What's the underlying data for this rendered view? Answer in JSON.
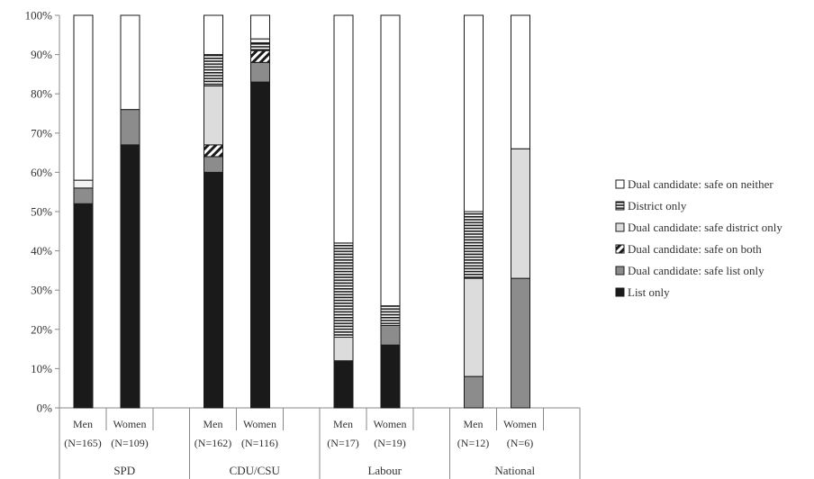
{
  "chart_data": {
    "type": "bar",
    "stacked": true,
    "percent_scale": true,
    "ylim": [
      0,
      100
    ],
    "yticks": [
      "0%",
      "10%",
      "20%",
      "30%",
      "40%",
      "50%",
      "60%",
      "70%",
      "80%",
      "90%",
      "100%"
    ],
    "legend_position": "right",
    "groups": [
      {
        "name": "SPD",
        "bars": [
          {
            "label": "Men",
            "n": "(N=165)",
            "values": [
              52,
              4,
              0,
              0,
              0,
              2,
              42
            ]
          },
          {
            "label": "Women",
            "n": "(N=109)",
            "values": [
              67,
              9,
              0,
              0,
              0,
              0,
              24
            ]
          }
        ]
      },
      {
        "name": "CDU/CSU",
        "bars": [
          {
            "label": "Men",
            "n": "(N=162)",
            "values": [
              60,
              4,
              3,
              15,
              8,
              0,
              10
            ]
          },
          {
            "label": "Women",
            "n": "(N=116)",
            "values": [
              83,
              5,
              3,
              0,
              2,
              1,
              6
            ]
          }
        ]
      },
      {
        "name": "Labour",
        "bars": [
          {
            "label": "Men",
            "n": "(N=17)",
            "values": [
              12,
              0,
              0,
              6,
              24,
              0,
              58
            ]
          },
          {
            "label": "Women",
            "n": "(N=19)",
            "values": [
              16,
              5,
              0,
              0,
              5,
              0,
              74
            ]
          }
        ]
      },
      {
        "name": "National",
        "bars": [
          {
            "label": "Men",
            "n": "(N=12)",
            "values": [
              0,
              8,
              0,
              25,
              17,
              0,
              50
            ]
          },
          {
            "label": "Women",
            "n": "(N=6)",
            "values": [
              0,
              33,
              0,
              33,
              0,
              0,
              34
            ]
          }
        ]
      }
    ],
    "series": [
      {
        "name": "List only",
        "color": "#1a1a1a",
        "pattern": "solid"
      },
      {
        "name": "Dual candidate: safe list only",
        "color": "#8c8c8c",
        "pattern": "solid"
      },
      {
        "name": "Dual candidate: safe on both",
        "color": "#ffffff",
        "pattern": "diagonal"
      },
      {
        "name": "Dual candidate: safe district only",
        "color": "#dcdcdc",
        "pattern": "solid"
      },
      {
        "name": "District only",
        "color": "#ffffff",
        "pattern": "horizontal"
      },
      {
        "name": "",
        "color": "#f2f2f2",
        "pattern": "solid"
      },
      {
        "name": "Dual candidate: safe on neither",
        "color": "#ffffff",
        "pattern": "solid"
      }
    ],
    "legend_order": [
      6,
      4,
      3,
      2,
      1,
      0
    ]
  }
}
